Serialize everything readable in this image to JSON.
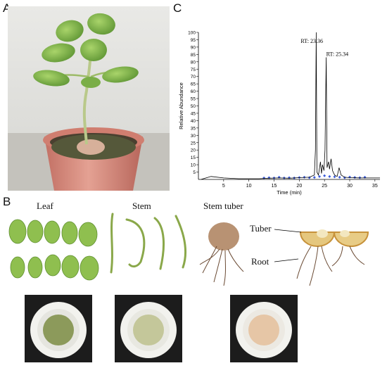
{
  "panels": {
    "A": {
      "letter": "A"
    },
    "B": {
      "letter": "B",
      "captions": {
        "leaf": "Leaf",
        "stem": "Stem",
        "stem_tuber": "Stem tuber"
      },
      "annotations": {
        "tuber": "Tuber",
        "root": "Root"
      }
    },
    "C": {
      "letter": "C"
    }
  },
  "colors": {
    "leaf_green": "#7fb54a",
    "pot_pink": "#d88a7c",
    "chromatogram_line": "#000000",
    "marker_blue": "#3a5bd9"
  },
  "chart_data": {
    "type": "line",
    "xlabel": "Time (min)",
    "ylabel": "Relative Abundance",
    "xlim": [
      0,
      36
    ],
    "ylim": [
      0,
      100
    ],
    "xticks": [
      "5",
      "10",
      "15",
      "20",
      "25",
      "30",
      "35"
    ],
    "yticks": [
      "5",
      "10",
      "15",
      "20",
      "25",
      "30",
      "35",
      "40",
      "45",
      "50",
      "55",
      "60",
      "65",
      "70",
      "75",
      "80",
      "85",
      "90",
      "95",
      "100"
    ],
    "x": [
      0.5,
      2.5,
      5,
      8,
      10,
      12,
      14,
      16,
      18,
      20,
      22,
      23.0,
      23.2,
      23.36,
      23.5,
      23.8,
      24.2,
      24.4,
      24.6,
      24.9,
      25.1,
      25.34,
      25.5,
      25.8,
      26.0,
      26.3,
      26.6,
      27.0,
      27.5,
      27.9,
      28.3,
      29,
      30,
      32,
      34,
      36
    ],
    "y": [
      0,
      2,
      1,
      0.5,
      0.5,
      0.5,
      0.8,
      1.0,
      0.8,
      1.2,
      1.5,
      3,
      20,
      100,
      5,
      3,
      12,
      4,
      10,
      6,
      20,
      83,
      8,
      12,
      7,
      14,
      6,
      3,
      2,
      8,
      3,
      1.5,
      1.2,
      1,
      1,
      1
    ],
    "peak_annotations": [
      {
        "label": "RT: 23.36",
        "x": 23.36,
        "y": 100
      },
      {
        "label": "RT: 25.34",
        "x": 25.34,
        "y": 83
      }
    ],
    "markers": {
      "description": "Small blue markers scattered near the baseline",
      "x": [
        13,
        14,
        15,
        16,
        17,
        18,
        19,
        20,
        21,
        22,
        23,
        24,
        25,
        26,
        27,
        28,
        29,
        30,
        31,
        32,
        33
      ],
      "y": [
        1,
        1.2,
        1,
        1.5,
        1,
        1.2,
        1,
        1.3,
        1.5,
        1.2,
        1.4,
        2,
        2.5,
        2,
        1.8,
        1.5,
        1.2,
        1.6,
        1.4,
        1.2,
        1.5
      ]
    }
  }
}
